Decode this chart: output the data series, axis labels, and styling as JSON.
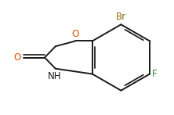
{
  "background_color": "#ffffff",
  "bond_color": "#1a1a1a",
  "atom_colors": {
    "O": "#e05000",
    "N": "#1a1a1a",
    "Br": "#8B6914",
    "F": "#2e8b2e",
    "C": "#1a1a1a"
  },
  "figsize": [
    2.22,
    1.47
  ],
  "dpi": 100,
  "lw": 1.4
}
